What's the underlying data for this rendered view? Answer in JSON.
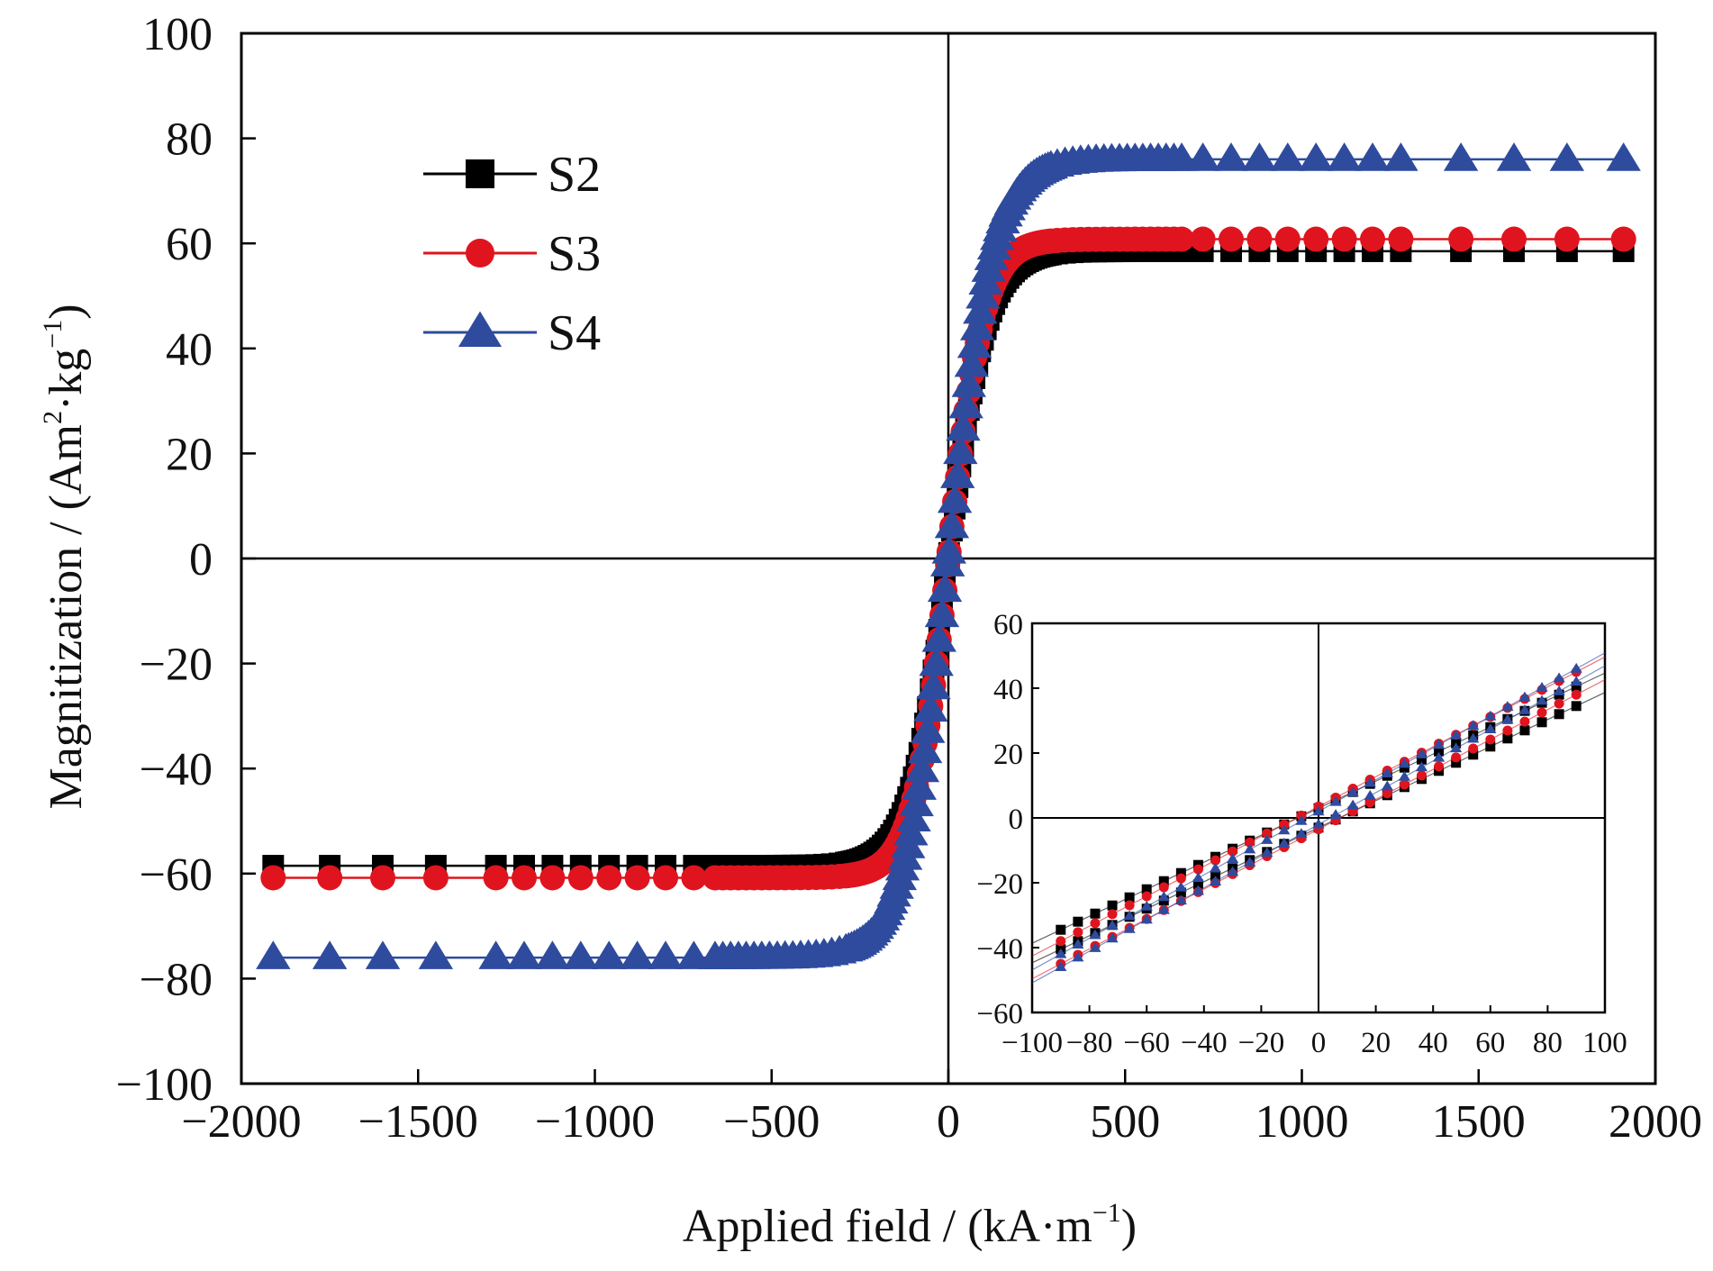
{
  "chart_data": {
    "type": "line",
    "xlabel_main": "Applied field / (kA·m",
    "xlabel_sup": "−1",
    "xlabel_end": ")",
    "ylabel_main": "Magnitization / (Am",
    "ylabel_sup1": "2",
    "ylabel_mid": "·kg",
    "ylabel_sup2": "−1",
    "ylabel_end": ")",
    "xlim": [
      -2000,
      2000
    ],
    "ylim": [
      -100,
      100
    ],
    "xticks": [
      -2000,
      -1500,
      -1000,
      -500,
      0,
      500,
      1000,
      1500,
      2000
    ],
    "yticks": [
      -100,
      -80,
      -60,
      -40,
      -20,
      0,
      20,
      40,
      60,
      80,
      100
    ],
    "xtick_labels": [
      "−2000",
      "−1500",
      "−1000",
      "−500",
      "0",
      "500",
      "1000",
      "1500",
      "2000"
    ],
    "ytick_labels": [
      "−100",
      "−80",
      "−60",
      "−40",
      "−20",
      "0",
      "20",
      "40",
      "60",
      "80",
      "100"
    ],
    "grid": false,
    "legend_position": "top-left",
    "series": [
      {
        "name": "S2",
        "color": "#000000",
        "marker": "square",
        "saturation": 58.5,
        "field_scale": 110
      },
      {
        "name": "S3",
        "color": "#e0141e",
        "marker": "circle",
        "saturation": 60.8,
        "field_scale": 100
      },
      {
        "name": "S4",
        "color": "#2e4b9e",
        "marker": "triangle",
        "saturation": 76.0,
        "field_scale": 125
      }
    ],
    "inset": {
      "type": "line",
      "xlim": [
        -100,
        100
      ],
      "ylim": [
        -60,
        60
      ],
      "xticks": [
        -100,
        -80,
        -60,
        -40,
        -20,
        0,
        20,
        40,
        60,
        80,
        100
      ],
      "yticks": [
        -60,
        -40,
        -20,
        0,
        20,
        40,
        60
      ],
      "xtick_labels": [
        "−100",
        "−80",
        "−60",
        "−40",
        "−20",
        "0",
        "20",
        "40",
        "60",
        "80",
        "100"
      ],
      "ytick_labels": [
        "−60",
        "−40",
        "−20",
        "0",
        "20",
        "40",
        "60"
      ],
      "series": [
        {
          "name": "S2",
          "slope_end": 37.5,
          "loop_offset": 3.0
        },
        {
          "name": "S3",
          "slope_end": 41.5,
          "loop_offset": 3.5
        },
        {
          "name": "S4",
          "slope_end": 44.0,
          "loop_offset": 2.0
        }
      ]
    }
  }
}
